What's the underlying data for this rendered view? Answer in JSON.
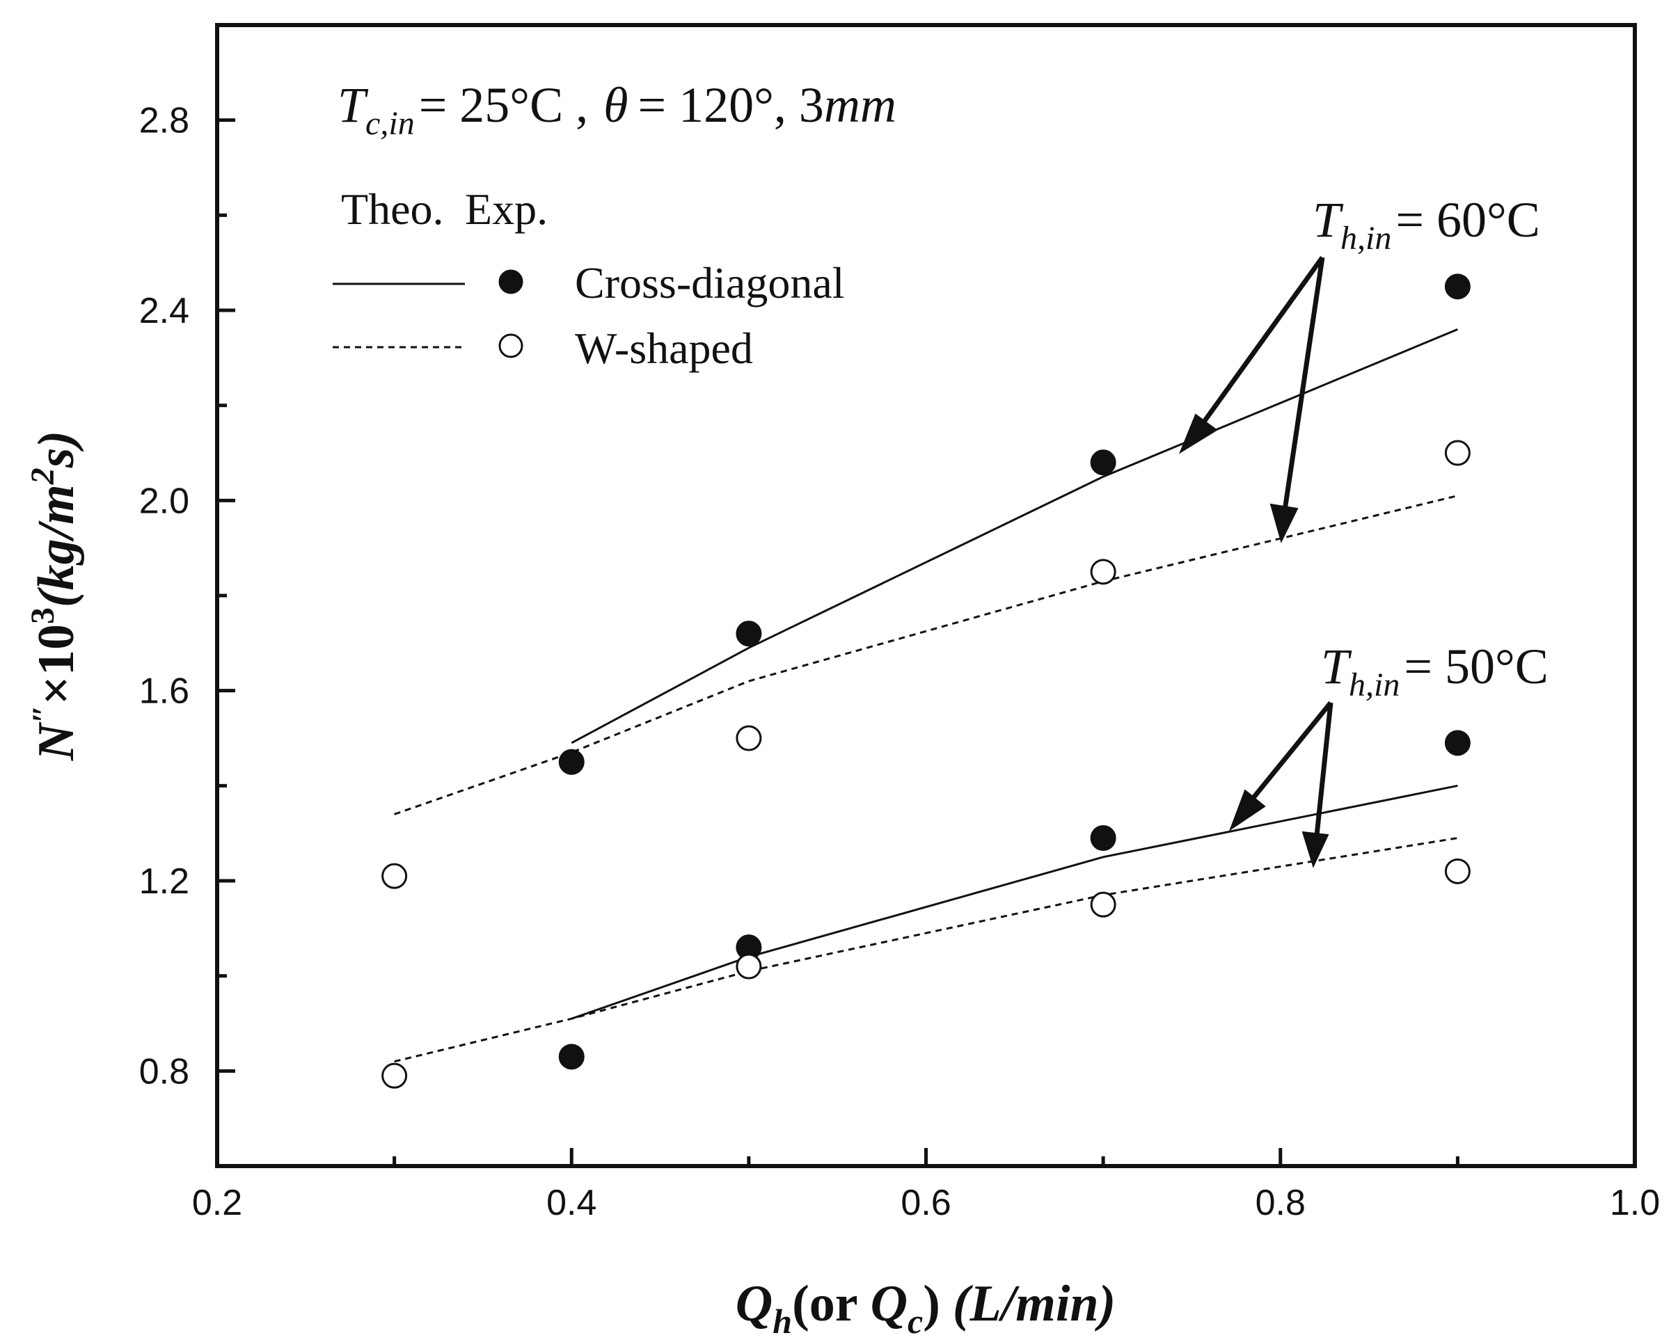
{
  "chart_data": {
    "type": "scatter",
    "condition_parts": {
      "t_sym": "T",
      "t_sub": "c,in",
      "t_val": "= 25°C ,",
      "theta_sym": "θ",
      "theta_val": "= 120°, 3",
      "mm": "mm"
    },
    "xlabel_parts": {
      "q1": "Q",
      "q1_sub": "h",
      "mid": "(or",
      "q2": "Q",
      "q2_sub": "c",
      "paren": ")",
      "units": "(L/min)"
    },
    "ylabel_parts": {
      "n": "N",
      "prime": "″",
      "times": "×10",
      "exp3": "3",
      "units_a": "(kg/m",
      "exp2": "2",
      "units_b": "s)"
    },
    "xlim": [
      0.2,
      1.0
    ],
    "ylim": [
      0.6,
      3.0
    ],
    "x_ticks": [
      "0.2",
      "0.4",
      "0.6",
      "0.8",
      "1.0"
    ],
    "y_ticks": [
      "0.8",
      "1.2",
      "1.6",
      "2.0",
      "2.4",
      "2.8"
    ],
    "legend": {
      "header_theo": "Theo.",
      "header_exp": "Exp.",
      "entries": [
        {
          "label": "Cross-diagonal",
          "line_style": "solid",
          "marker": "filled-circle"
        },
        {
          "label": "W-shaped",
          "line_style": "dashed",
          "marker": "open-circle"
        }
      ]
    },
    "annotations": [
      {
        "sym": "T",
        "sub": "h,in",
        "val": "= 60°C"
      },
      {
        "sym": "T",
        "sub": "h,in",
        "val": "= 50°C"
      }
    ],
    "series": [
      {
        "name": "Cross-diagonal Theo. 60°C",
        "kind": "line",
        "style": "solid",
        "x": [
          0.4,
          0.5,
          0.7,
          0.9
        ],
        "y": [
          1.49,
          1.69,
          2.05,
          2.36
        ]
      },
      {
        "name": "W-shaped Theo. 60°C",
        "kind": "line",
        "style": "dashed",
        "x": [
          0.3,
          0.4,
          0.5,
          0.7,
          0.9
        ],
        "y": [
          1.34,
          1.47,
          1.62,
          1.83,
          2.01
        ]
      },
      {
        "name": "Cross-diagonal Exp. 60°C",
        "kind": "points",
        "marker": "filled",
        "x": [
          0.4,
          0.5,
          0.7,
          0.9
        ],
        "y": [
          1.45,
          1.72,
          2.08,
          2.45
        ]
      },
      {
        "name": "W-shaped Exp. 60°C",
        "kind": "points",
        "marker": "open",
        "x": [
          0.5,
          0.7,
          0.9
        ],
        "y": [
          1.5,
          1.85,
          2.1
        ]
      },
      {
        "name": "Cross-diagonal Theo. 50°C",
        "kind": "line",
        "style": "solid",
        "x": [
          0.4,
          0.5,
          0.7,
          0.9
        ],
        "y": [
          0.91,
          1.04,
          1.25,
          1.4
        ]
      },
      {
        "name": "W-shaped Theo. 50°C",
        "kind": "line",
        "style": "dashed",
        "x": [
          0.3,
          0.4,
          0.5,
          0.7,
          0.9
        ],
        "y": [
          0.82,
          0.91,
          1.01,
          1.17,
          1.29
        ]
      },
      {
        "name": "Cross-diagonal Exp. 50°C",
        "kind": "points",
        "marker": "filled",
        "x": [
          0.4,
          0.5,
          0.7,
          0.9
        ],
        "y": [
          0.83,
          1.06,
          1.29,
          1.49
        ]
      },
      {
        "name": "W-shaped Exp. 50°C",
        "kind": "points",
        "marker": "open",
        "x": [
          0.3,
          0.3,
          0.5,
          0.7,
          0.9
        ],
        "y": [
          1.21,
          0.79,
          1.02,
          1.15,
          1.22
        ]
      }
    ]
  }
}
